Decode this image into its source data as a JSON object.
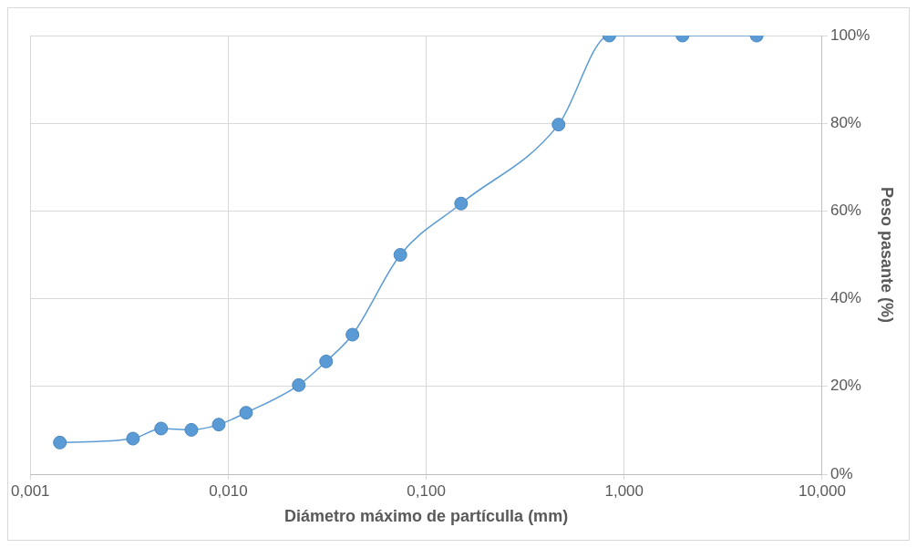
{
  "chart_data": {
    "type": "line",
    "xlabel": "Diámetro máximo de partículla (mm)",
    "ylabel": "Peso pasante (%)",
    "x": [
      0.00141,
      0.0033,
      0.00458,
      0.00651,
      0.00895,
      0.0123,
      0.0227,
      0.0312,
      0.0424,
      0.074,
      0.15,
      0.466,
      0.841,
      1.97,
      4.67
    ],
    "series": [
      {
        "color": "#5b9bd5",
        "values": [
          7.2,
          8.1,
          10.4,
          10.1,
          11.3,
          14,
          20.3,
          25.7,
          31.8,
          50,
          61.7,
          79.7,
          100,
          100,
          100
        ]
      }
    ],
    "log": "x",
    "xlim": [
      0.001,
      10
    ],
    "xticks": [
      {
        "value": 0.001,
        "label": "0,001"
      },
      {
        "value": 0.01,
        "label": "0,010"
      },
      {
        "value": 0.1,
        "label": "0,100"
      },
      {
        "value": 1,
        "label": "1,000"
      },
      {
        "value": 10,
        "label": "10,000"
      }
    ],
    "ylim": [
      0,
      100
    ],
    "yticks": [
      {
        "value": 0,
        "label": "0%"
      },
      {
        "value": 20,
        "label": "20%"
      },
      {
        "value": 40,
        "label": "40%"
      },
      {
        "value": 60,
        "label": "60%"
      },
      {
        "value": 80,
        "label": "80%"
      },
      {
        "value": 100,
        "label": "100%"
      }
    ],
    "grid": true,
    "marker": "circle",
    "legend": false
  }
}
